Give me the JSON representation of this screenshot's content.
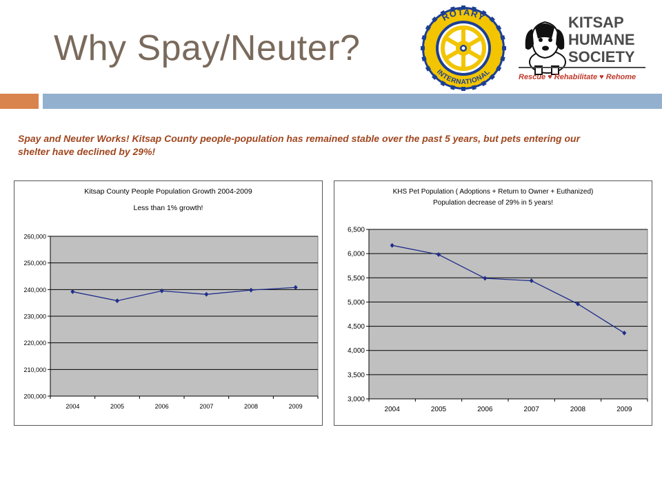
{
  "slide": {
    "title": "Why Spay/Neuter?",
    "subtitle": "Spay and Neuter Works!  Kitsap County people-population has remained stable over the past 5 years, but pets entering our shelter have declined by 29%!",
    "colors": {
      "title": "#7a6a5c",
      "accent_orange": "#d9834d",
      "accent_blue": "#93b1cf",
      "subtitle": "#a0461f"
    }
  },
  "logos": {
    "rotary": {
      "top_text": "ROTARY",
      "bottom_text": "INTERNATIONAL"
    },
    "khs": {
      "line1": "KITSAP",
      "line2": "HUMANE",
      "line3": "SOCIETY",
      "tagline": "Rescue ♥ Rehabilitate ♥ Rehome"
    }
  },
  "chart_data": [
    {
      "type": "line",
      "title": "Kitsap County People Population Growth 2004-2009",
      "subtitle": "Less than 1% growth!",
      "categories": [
        "2004",
        "2005",
        "2006",
        "2007",
        "2008",
        "2009"
      ],
      "series": [
        {
          "values": [
            239200,
            235800,
            239500,
            238200,
            239800,
            240800
          ]
        }
      ],
      "ylim": [
        200000,
        260000
      ],
      "yticks": [
        "200,000",
        "210,000",
        "220,000",
        "230,000",
        "240,000",
        "250,000",
        "260,000"
      ],
      "ytick_values": [
        200000,
        210000,
        220000,
        230000,
        240000,
        250000,
        260000
      ],
      "grid": true,
      "plot_bg": "#c0c0c0",
      "line_color": "#1f2d8a"
    },
    {
      "type": "line",
      "title": "KHS Pet Population ( Adoptions + Return to Owner + Euthanized)",
      "subtitle": "Population decrease of 29% in 5 years!",
      "categories": [
        "2004",
        "2005",
        "2006",
        "2007",
        "2008",
        "2009"
      ],
      "series": [
        {
          "values": [
            6170,
            5980,
            5490,
            5440,
            4960,
            4360
          ]
        }
      ],
      "ylim": [
        3000,
        6500
      ],
      "yticks": [
        "3,000",
        "3,500",
        "4,000",
        "4,500",
        "5,000",
        "5,500",
        "6,000",
        "6,500"
      ],
      "ytick_values": [
        3000,
        3500,
        4000,
        4500,
        5000,
        5500,
        6000,
        6500
      ],
      "grid": true,
      "plot_bg": "#c0c0c0",
      "line_color": "#1f2d8a"
    }
  ]
}
